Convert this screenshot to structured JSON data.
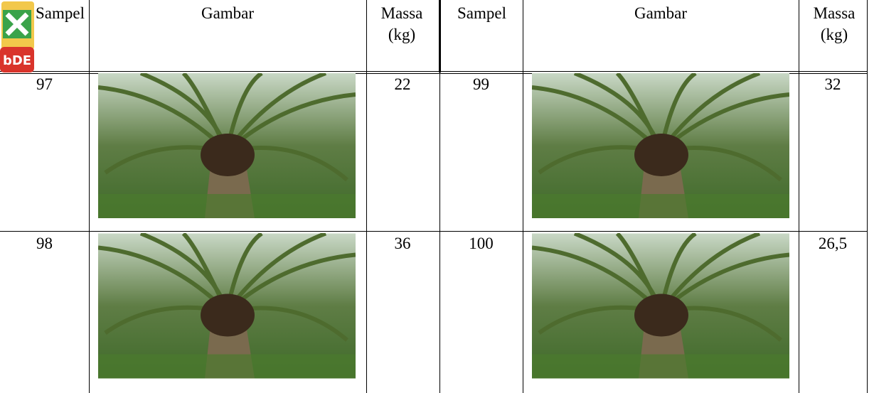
{
  "header": {
    "columns": [
      "Sampel",
      "Gambar",
      "Massa (kg)",
      "Sampel",
      "Gambar",
      "Massa (kg)"
    ]
  },
  "table": {
    "rows": [
      [
        "97",
        "22",
        "99",
        "32"
      ],
      [
        "98",
        "36",
        "100",
        "26,5"
      ]
    ]
  },
  "icon": {
    "label": "bDE"
  }
}
